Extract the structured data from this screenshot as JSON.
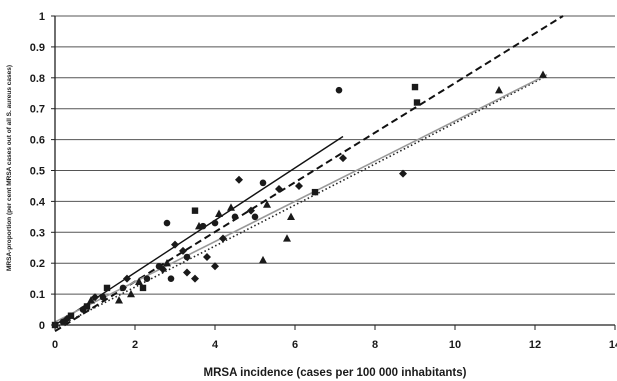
{
  "chart_data": {
    "type": "scatter",
    "title": "",
    "xlabel": "MRSA incidence (cases per 100 000 inhabitants)",
    "ylabel": "MRSA-proportion (per cent MRSA cases out of all S. aureus cases)",
    "xlim": [
      0,
      14
    ],
    "ylim": [
      0,
      1
    ],
    "x_ticks": [
      0,
      2,
      4,
      6,
      8,
      10,
      12,
      14
    ],
    "y_ticks": [
      0,
      0.1,
      0.2,
      0.3,
      0.4,
      0.5,
      0.6,
      0.7,
      0.8,
      0.9,
      1
    ],
    "x_tick_labels": [
      "0",
      "2",
      "4",
      "6",
      "8",
      "10",
      "12",
      "14"
    ],
    "y_tick_labels": [
      "0",
      "0.1",
      "0.2",
      "0.3",
      "0.4",
      "0.5",
      "0.6",
      "0.7",
      "0.8",
      "0.9",
      "1"
    ],
    "grid": "horizontal",
    "colors": {
      "marker": "#1a1a1a",
      "grid": "#555555",
      "axis": "#222222",
      "gray_line": "#9a9a9a"
    },
    "series": [
      {
        "marker": "square",
        "points": [
          [
            0,
            0
          ],
          [
            0.4,
            0.03
          ],
          [
            0.8,
            0.06
          ],
          [
            1.3,
            0.12
          ],
          [
            2.2,
            0.12
          ],
          [
            3.5,
            0.37
          ],
          [
            6.5,
            0.43
          ],
          [
            9,
            0.77
          ],
          [
            9.05,
            0.72
          ]
        ]
      },
      {
        "marker": "diamond",
        "points": [
          [
            0.3,
            0.02
          ],
          [
            1.0,
            0.09
          ],
          [
            1.8,
            0.15
          ],
          [
            2.7,
            0.18
          ],
          [
            3.0,
            0.26
          ],
          [
            3.2,
            0.24
          ],
          [
            3.3,
            0.17
          ],
          [
            3.5,
            0.15
          ],
          [
            3.8,
            0.22
          ],
          [
            4.0,
            0.19
          ],
          [
            4.2,
            0.28
          ],
          [
            4.6,
            0.47
          ],
          [
            4.9,
            0.37
          ],
          [
            5.6,
            0.44
          ],
          [
            6.1,
            0.45
          ],
          [
            7.2,
            0.54
          ],
          [
            8.7,
            0.49
          ]
        ]
      },
      {
        "marker": "circle",
        "points": [
          [
            0.2,
            0.01
          ],
          [
            0.7,
            0.05
          ],
          [
            1.2,
            0.09
          ],
          [
            1.7,
            0.12
          ],
          [
            2.3,
            0.15
          ],
          [
            2.6,
            0.19
          ],
          [
            2.8,
            0.33
          ],
          [
            2.9,
            0.15
          ],
          [
            3.3,
            0.22
          ],
          [
            3.7,
            0.32
          ],
          [
            4.0,
            0.33
          ],
          [
            4.5,
            0.35
          ],
          [
            5.0,
            0.35
          ],
          [
            5.2,
            0.46
          ],
          [
            7.1,
            0.76
          ]
        ]
      },
      {
        "marker": "triangle",
        "points": [
          [
            0.9,
            0.08
          ],
          [
            1.6,
            0.08
          ],
          [
            1.9,
            0.1
          ],
          [
            2.1,
            0.14
          ],
          [
            2.8,
            0.2
          ],
          [
            3.6,
            0.32
          ],
          [
            4.1,
            0.36
          ],
          [
            4.4,
            0.38
          ],
          [
            5.2,
            0.21
          ],
          [
            5.3,
            0.39
          ],
          [
            5.8,
            0.28
          ],
          [
            5.9,
            0.35
          ],
          [
            11.1,
            0.76
          ],
          [
            12.2,
            0.81
          ]
        ]
      }
    ],
    "trend_lines": [
      {
        "style": "solid",
        "x": [
          0,
          7.2
        ],
        "y": [
          0,
          0.61
        ]
      },
      {
        "style": "dashed",
        "x": [
          0,
          12.7
        ],
        "y": [
          -0.02,
          1.0
        ]
      },
      {
        "style": "dotted",
        "x": [
          0,
          12.2
        ],
        "y": [
          -0.01,
          0.8
        ]
      },
      {
        "style": "gray",
        "x": [
          0,
          12.3
        ],
        "y": [
          0.01,
          0.81
        ]
      }
    ]
  }
}
